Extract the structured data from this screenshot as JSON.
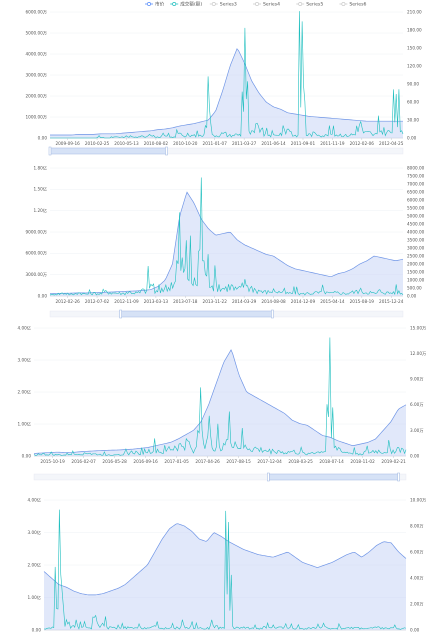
{
  "legend": {
    "items": [
      {
        "label": "市价",
        "active": true,
        "color": "#5b8ff9"
      },
      {
        "label": "成交额(额)",
        "active": true,
        "color": "#22c0c0"
      },
      {
        "label": "Series3",
        "active": false,
        "color": "#cccccc"
      },
      {
        "label": "Series4",
        "active": false,
        "color": "#cccccc"
      },
      {
        "label": "Series5",
        "active": false,
        "color": "#cccccc"
      },
      {
        "label": "Series6",
        "active": false,
        "color": "#cccccc"
      }
    ]
  },
  "colors": {
    "price": "#6f95e6",
    "price_fill": "#c9d6f5",
    "volume": "#1fbfbf",
    "grid": "#eef0f4",
    "axis": "#bfc6d2",
    "slider_fill": "#d6e2f6",
    "slider_border": "#9ab3e0"
  },
  "chart_data": [
    {
      "type": "line",
      "x_ticks": [
        "2009-09-16",
        "2010-02-25",
        "2010-05-13",
        "2010-08-02",
        "2010-10-20",
        "2011-01-07",
        "2011-03-27",
        "2011-06-14",
        "2011-09-01",
        "2011-11-19",
        "2012-02-06",
        "2012-04-25"
      ],
      "y_left_ticks": [
        "0.00",
        "1000.00万",
        "2000.00万",
        "3000.00万",
        "4000.00万",
        "5000.00万",
        "6000.00万"
      ],
      "y_right_ticks": [
        "0.00",
        "30.00",
        "60.00",
        "90.00",
        "120.00",
        "150.00",
        "180.00",
        "210.00"
      ],
      "y_left_range": [
        0,
        60000000
      ],
      "y_right_range": [
        0,
        210
      ],
      "series": [
        {
          "role": "price",
          "axis": "right",
          "values": [
            5,
            5,
            5,
            5,
            6,
            6,
            6,
            7,
            7,
            7,
            8,
            9,
            10,
            11,
            12,
            14,
            15,
            17,
            20,
            22,
            24,
            27,
            30,
            45,
            80,
            120,
            150,
            125,
            95,
            75,
            60,
            52,
            48,
            42,
            40,
            38,
            36,
            35,
            34,
            33,
            32,
            31,
            30,
            29,
            28,
            28,
            28,
            28,
            28,
            28
          ]
        },
        {
          "role": "volume",
          "axis": "left",
          "values": [
            0,
            0,
            0,
            0,
            0,
            0,
            0,
            1,
            0,
            1,
            1,
            2,
            1,
            2,
            5,
            1,
            2,
            1,
            8,
            2,
            3,
            3,
            28,
            3,
            5,
            3,
            4,
            50,
            6,
            12,
            4,
            3,
            5,
            10,
            3,
            53,
            4,
            5,
            3,
            5,
            4,
            3,
            4,
            15,
            6,
            4,
            9,
            7,
            20,
            6
          ]
        }
      ],
      "slider": [
        0.0,
        0.33
      ]
    },
    {
      "type": "line",
      "x_ticks": [
        "2012-02-26",
        "2012-07-02",
        "2012-11-09",
        "2013-03-13",
        "2013-07-18",
        "2013-11-22",
        "2014-03-29",
        "2014-08-08",
        "2014-12-09",
        "2015-04-14",
        "2015-08-19",
        "2015-12-24"
      ],
      "y_left_ticks": [
        "0.00",
        "3000.00万",
        "6000.00万",
        "9000.00万",
        "1.20亿",
        "1.50亿",
        "1.80亿"
      ],
      "y_right_ticks": [
        "0.00",
        "500.00",
        "1000.00",
        "1500.00",
        "2000.00",
        "2500.00",
        "3000.00",
        "3500.00",
        "4000.00",
        "4500.00",
        "5000.00",
        "5500.00",
        "6000.00",
        "6500.00",
        "7000.00",
        "7500.00",
        "8000.00"
      ],
      "y_left_range": [
        0,
        180000000
      ],
      "y_right_range": [
        0,
        8000
      ],
      "series": [
        {
          "role": "price",
          "axis": "right",
          "values": [
            150,
            160,
            170,
            180,
            200,
            190,
            210,
            220,
            240,
            260,
            280,
            300,
            320,
            350,
            400,
            600,
            1000,
            2000,
            5000,
            6500,
            5800,
            4800,
            4200,
            3800,
            3900,
            4000,
            3500,
            3200,
            3000,
            2800,
            2600,
            2500,
            2200,
            1900,
            1700,
            1600,
            1500,
            1400,
            1300,
            1200,
            1400,
            1500,
            1700,
            2000,
            2200,
            2500,
            2400,
            2300,
            2200,
            2300
          ]
        },
        {
          "role": "volume",
          "axis": "left",
          "values": [
            5,
            8,
            10,
            6,
            12,
            8,
            10,
            9,
            15,
            12,
            10,
            14,
            12,
            20,
            40,
            15,
            30,
            50,
            120,
            80,
            50,
            170,
            60,
            40,
            30,
            35,
            25,
            45,
            30,
            20,
            15,
            20,
            15,
            10,
            12,
            8,
            10,
            12,
            15,
            10,
            12,
            10,
            14,
            20,
            15,
            10,
            18,
            12,
            15,
            10
          ]
        }
      ],
      "slider": [
        0.2,
        0.63
      ]
    },
    {
      "type": "line",
      "x_ticks": [
        "2015-10-19",
        "2016-02-07",
        "2016-05-28",
        "2016-09-16",
        "2017-01-05",
        "2017-04-26",
        "2017-08-15",
        "2017-12-04",
        "2018-03-25",
        "2018-07-14",
        "2018-11-02",
        "2019-02-21"
      ],
      "y_left_ticks": [
        "0.00",
        "1.00亿",
        "2.00亿",
        "3.00亿",
        "4.00亿"
      ],
      "y_right_ticks": [
        "0.00",
        "3.00万",
        "6.00万",
        "9.00万",
        "12.00万",
        "15.00万"
      ],
      "y_left_range": [
        0,
        400000000
      ],
      "y_right_range": [
        0,
        150000
      ],
      "series": [
        {
          "role": "price",
          "axis": "right",
          "values": [
            3000,
            3500,
            4000,
            4500,
            4200,
            4000,
            5000,
            5500,
            6000,
            6500,
            6800,
            7000,
            7500,
            8000,
            9000,
            10000,
            12000,
            14000,
            16000,
            20000,
            25000,
            30000,
            40000,
            60000,
            85000,
            110000,
            125000,
            95000,
            75000,
            70000,
            65000,
            60000,
            55000,
            50000,
            42000,
            38000,
            36000,
            30000,
            24000,
            22000,
            18000,
            15000,
            12000,
            14000,
            16000,
            20000,
            30000,
            40000,
            55000,
            60000
          ]
        },
        {
          "role": "volume",
          "axis": "left",
          "values": [
            10,
            15,
            12,
            10,
            8,
            15,
            20,
            25,
            15,
            12,
            10,
            15,
            20,
            30,
            25,
            40,
            50,
            30,
            60,
            80,
            100,
            60,
            220,
            120,
            90,
            110,
            130,
            80,
            70,
            60,
            50,
            40,
            45,
            30,
            35,
            25,
            20,
            30,
            40,
            380,
            60,
            30,
            25,
            20,
            30,
            40,
            35,
            45,
            60,
            40
          ]
        }
      ],
      "slider": [
        0.63,
        0.98
      ]
    },
    {
      "type": "line",
      "x_ticks": [],
      "y_left_ticks": [
        "0.00",
        "1.00亿",
        "2.00亿",
        "3.00亿",
        "4.00亿"
      ],
      "y_right_ticks": [
        "0.00",
        "2.00万",
        "4.00万",
        "6.00万",
        "8.00万",
        "10.00万"
      ],
      "y_left_range": [
        0,
        400000000
      ],
      "y_right_range": [
        0,
        100000
      ],
      "series": [
        {
          "role": "price",
          "axis": "right",
          "values": [
            45000,
            40000,
            35000,
            33000,
            30000,
            28000,
            27000,
            27000,
            28000,
            30000,
            32000,
            35000,
            40000,
            45000,
            50000,
            60000,
            70000,
            78000,
            82000,
            80000,
            76000,
            70000,
            68000,
            75000,
            72000,
            68000,
            65000,
            62000,
            60000,
            58000,
            57000,
            56000,
            58000,
            60000,
            56000,
            52000,
            50000,
            48000,
            50000,
            52000,
            55000,
            58000,
            60000,
            56000,
            60000,
            65000,
            68000,
            67000,
            60000,
            55000
          ]
        },
        {
          "role": "volume",
          "axis": "left",
          "values": [
            10,
            20,
            390,
            60,
            30,
            25,
            20,
            90,
            40,
            20,
            15,
            20,
            15,
            18,
            20,
            25,
            15,
            20,
            18,
            30,
            25,
            20,
            15,
            30,
            20,
            350,
            25,
            20,
            18,
            15,
            20,
            15,
            20,
            18,
            15,
            12,
            15,
            18,
            20,
            15,
            18,
            15,
            20,
            18,
            15,
            20,
            18,
            15,
            12,
            15
          ]
        }
      ],
      "slider": null
    }
  ]
}
